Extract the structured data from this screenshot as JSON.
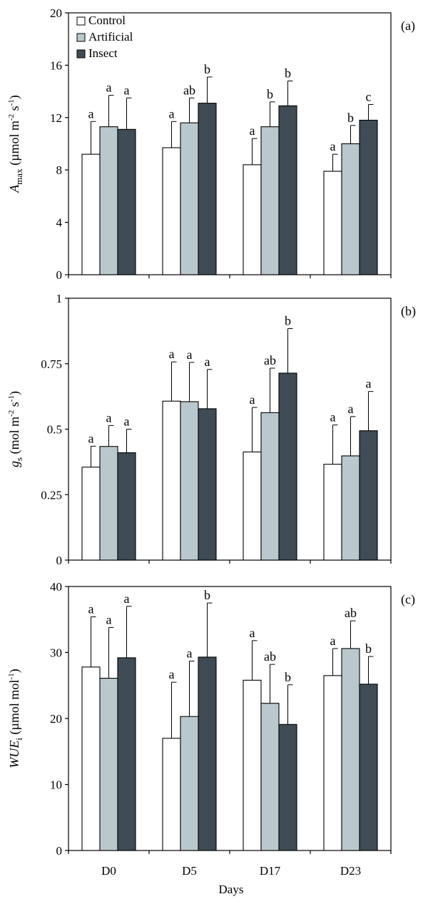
{
  "legend": [
    {
      "name": "Control",
      "color": "#ffffff"
    },
    {
      "name": "Artificial",
      "color": "#b9c8cc"
    },
    {
      "name": "Insect",
      "color": "#3f4b55"
    }
  ],
  "x_axis_label": "Days",
  "chart_data": [
    {
      "type": "bar",
      "panel": "(a)",
      "ylabel_main": "A",
      "ylabel_sub": "max",
      "ylabel_rest": " (µmol m",
      "ylabel_exp1": "-2",
      "ylabel_mid": " s",
      "ylabel_exp2": "-1",
      "ylabel_end": ")",
      "ylim": [
        0,
        20
      ],
      "yticks": [
        0,
        4,
        8,
        12,
        16,
        20
      ],
      "ytick_labels": [
        "0",
        "4",
        "8",
        "12",
        "16",
        "20"
      ],
      "categories": [
        "D0",
        "D5",
        "D17",
        "D23"
      ],
      "series": [
        {
          "name": "Control",
          "values": [
            9.2,
            9.7,
            8.4,
            7.9
          ],
          "errors": [
            2.5,
            2.0,
            2.0,
            1.3
          ],
          "letters": [
            "a",
            "a",
            "a",
            "a"
          ]
        },
        {
          "name": "Artificial",
          "values": [
            11.3,
            11.6,
            11.3,
            10.0
          ],
          "errors": [
            2.4,
            1.9,
            1.9,
            1.4
          ],
          "letters": [
            "a",
            "ab",
            "b",
            "b"
          ]
        },
        {
          "name": "Insect",
          "values": [
            11.1,
            13.1,
            12.9,
            11.8
          ],
          "errors": [
            2.4,
            2.0,
            1.9,
            1.2
          ],
          "letters": [
            "a",
            "b",
            "b",
            "c"
          ]
        }
      ]
    },
    {
      "type": "bar",
      "panel": "(b)",
      "ylabel_main": "g",
      "ylabel_sub": "s",
      "ylabel_rest": " (mol m",
      "ylabel_exp1": "-2",
      "ylabel_mid": " s",
      "ylabel_exp2": "-1",
      "ylabel_end": ")",
      "ylim": [
        0,
        1
      ],
      "yticks": [
        0,
        0.25,
        0.5,
        0.75,
        1
      ],
      "ytick_labels": [
        "0",
        "0.25",
        "0.5",
        "0.75",
        "1"
      ],
      "categories": [
        "D0",
        "D5",
        "D17",
        "D23"
      ],
      "series": [
        {
          "name": "Control",
          "values": [
            0.355,
            0.607,
            0.413,
            0.366
          ],
          "errors": [
            0.08,
            0.15,
            0.17,
            0.15
          ],
          "letters": [
            "a",
            "a",
            "a",
            "a"
          ]
        },
        {
          "name": "Artificial",
          "values": [
            0.434,
            0.605,
            0.563,
            0.398
          ],
          "errors": [
            0.08,
            0.15,
            0.17,
            0.15
          ],
          "letters": [
            "a",
            "a",
            "ab",
            "a"
          ]
        },
        {
          "name": "Insect",
          "values": [
            0.41,
            0.578,
            0.714,
            0.494
          ],
          "errors": [
            0.09,
            0.15,
            0.17,
            0.15
          ],
          "letters": [
            "a",
            "a",
            "b",
            "a"
          ]
        }
      ]
    },
    {
      "type": "bar",
      "panel": "(c)",
      "ylabel_main": "WUE",
      "ylabel_sub": "i",
      "ylabel_rest": " (µmol mol",
      "ylabel_exp1": "-1",
      "ylabel_mid": "",
      "ylabel_exp2": "",
      "ylabel_end": ")",
      "ylim": [
        0,
        40
      ],
      "yticks": [
        0,
        10,
        20,
        30,
        40
      ],
      "ytick_labels": [
        "0",
        "10",
        "20",
        "30",
        "40"
      ],
      "categories": [
        "D0",
        "D5",
        "D17",
        "D23"
      ],
      "series": [
        {
          "name": "Control",
          "values": [
            27.8,
            17.0,
            25.8,
            26.5
          ],
          "errors": [
            7.6,
            8.5,
            6.0,
            4.1
          ],
          "letters": [
            "a",
            "a",
            "a",
            "a"
          ]
        },
        {
          "name": "Artificial",
          "values": [
            26.1,
            20.3,
            22.3,
            30.6
          ],
          "errors": [
            7.7,
            8.4,
            5.9,
            4.2
          ],
          "letters": [
            "a",
            "a",
            "ab",
            "ab"
          ]
        },
        {
          "name": "Insect",
          "values": [
            29.2,
            29.3,
            19.1,
            25.2
          ],
          "errors": [
            7.8,
            8.2,
            6.0,
            4.2
          ],
          "letters": [
            "a",
            "b",
            "b",
            "b"
          ]
        }
      ]
    }
  ]
}
